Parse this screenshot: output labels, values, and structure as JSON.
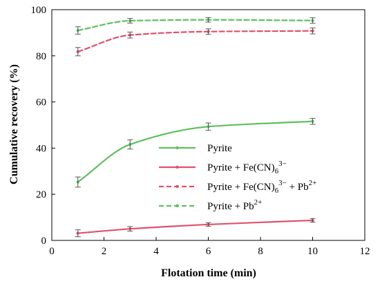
{
  "chart_data": {
    "type": "line",
    "title": "",
    "xlabel": "Flotation time (min)",
    "ylabel": "Cumulative recovery (%)",
    "xlim": [
      0,
      12
    ],
    "ylim": [
      0,
      100
    ],
    "xticks": [
      0,
      2,
      4,
      6,
      8,
      10,
      12
    ],
    "yticks": [
      0,
      20,
      40,
      60,
      80,
      100
    ],
    "grid": false,
    "legend_position": "center-right",
    "error_bars": true,
    "series": [
      {
        "name": "Pyrite",
        "name_parts": [
          [
            "Pyrite",
            "normal"
          ]
        ],
        "color": "#5cc05c",
        "line_style": "solid",
        "x": [
          1,
          3,
          6,
          10
        ],
        "y": [
          25.3,
          41.6,
          49.3,
          51.6
        ],
        "error": [
          2.2,
          2.0,
          1.6,
          1.3
        ]
      },
      {
        "name": "Pyrite + Fe(CN)6^3− ",
        "name_parts": [
          [
            "Pyrite + Fe(CN)",
            "normal"
          ],
          [
            "6",
            "sub"
          ],
          [
            "3−",
            "sup"
          ]
        ],
        "color": "#e0506b",
        "line_style": "solid",
        "x": [
          1,
          3,
          6,
          10
        ],
        "y": [
          3.1,
          5.0,
          6.9,
          8.7
        ],
        "error": [
          1.5,
          1.0,
          0.8,
          0.8
        ]
      },
      {
        "name": "Pyrite + Fe(CN)6^3− + Pb^2+",
        "name_parts": [
          [
            "Pyrite + Fe(CN)",
            "normal"
          ],
          [
            "6",
            "sub"
          ],
          [
            "3−",
            "sup"
          ],
          [
            " + Pb",
            "normal"
          ],
          [
            "2+",
            "sup"
          ]
        ],
        "color": "#e0506b",
        "line_style": "dashed",
        "x": [
          1,
          3,
          6,
          10
        ],
        "y": [
          81.8,
          89.0,
          90.5,
          90.8
        ],
        "error": [
          1.8,
          1.3,
          1.2,
          1.3
        ]
      },
      {
        "name": "Pyrite + Pb^2+",
        "name_parts": [
          [
            "Pyrite + Pb",
            "normal"
          ],
          [
            "2+",
            "sup"
          ]
        ],
        "color": "#5cc05c",
        "line_style": "dashed",
        "x": [
          1,
          3,
          6,
          10
        ],
        "y": [
          91.0,
          95.2,
          95.6,
          95.3
        ],
        "error": [
          1.6,
          1.0,
          1.0,
          1.2
        ]
      }
    ]
  }
}
